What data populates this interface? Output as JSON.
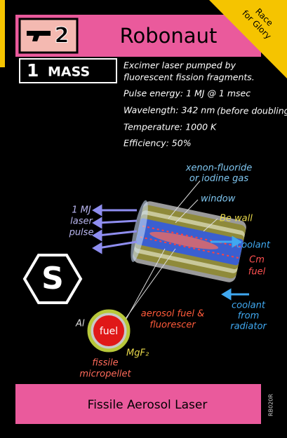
{
  "header": {
    "weapon_number": "2",
    "name": "Robonaut",
    "corner": [
      "Race",
      "for Glory"
    ]
  },
  "mass": {
    "number": "1",
    "label": "MASS"
  },
  "specs": {
    "description": [
      "Excimer laser pumped by",
      "fluorescent fission fragments."
    ],
    "pulse_energy": "Pulse energy: 1 MJ @ 1 msec",
    "wavelength": "Wavelength: 342 nm",
    "wavelength_note": "(before doubling)",
    "temperature": "Temperature: 1000 K",
    "efficiency": "Efficiency: 50%"
  },
  "diagram": {
    "gas": [
      "xenon-fluoride",
      "or iodine gas"
    ],
    "window": "window",
    "be_wall": "Be wall",
    "pulse": [
      "1 MJ",
      "laser",
      "pulse"
    ],
    "coolant": "coolant",
    "cm_fuel": [
      "Cm",
      "fuel"
    ],
    "coolant_return": [
      "coolant",
      "from",
      "radiator"
    ],
    "aerosol": [
      "aerosol fuel &",
      "fluorescer"
    ],
    "al": "Al",
    "fuel": "fuel",
    "mgf2": "MgF₂",
    "micropellet": [
      "fissile",
      "micropellet"
    ]
  },
  "symbol": "S",
  "footer": {
    "title": "Fissile Aerosol Laser",
    "code": "RB020R"
  }
}
